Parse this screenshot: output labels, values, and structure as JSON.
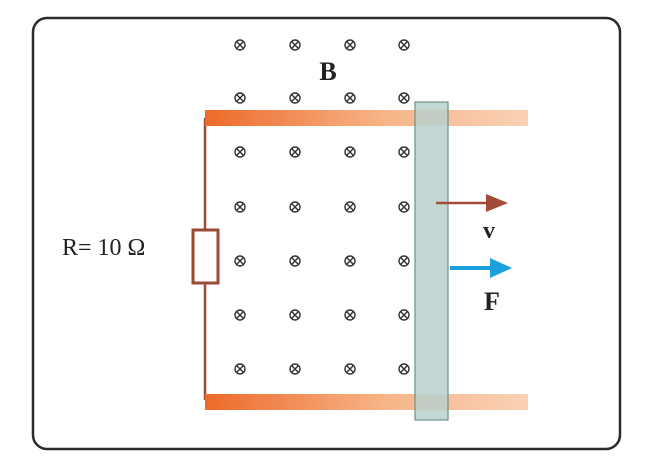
{
  "labels": {
    "field": "B",
    "resistor": "R= 10 Ω",
    "velocity": "v",
    "force": "F"
  },
  "field_symbol": {
    "icon": "into-page-cross-circle-icon",
    "glyph": "⊗",
    "columns": 4,
    "rows": 7
  },
  "colors": {
    "frame": "#2b2b2b",
    "rail_start": "#ec6a2a",
    "rail_end": "#f9d2b6",
    "circuit_wire": "#9a4a35",
    "bar_fill": "#b9d0cc",
    "bar_stroke": "#6f8f8a",
    "velocity_arrow": "#a14b38",
    "force_arrow": "#1aa0dc",
    "text": "#222222"
  }
}
